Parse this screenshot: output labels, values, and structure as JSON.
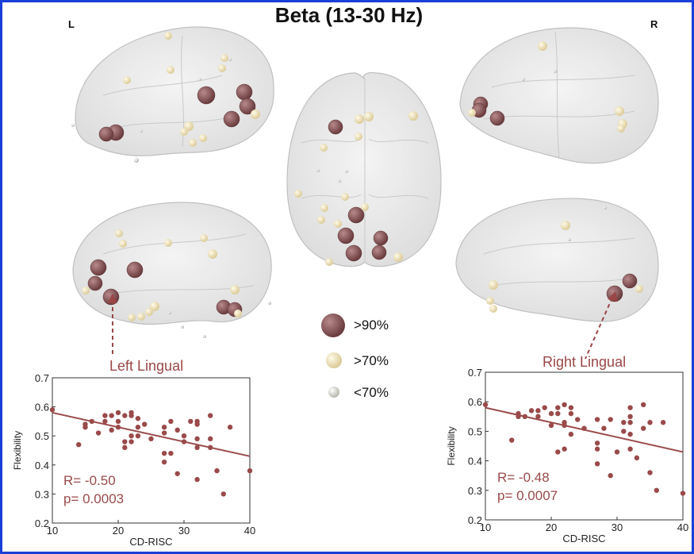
{
  "title": "Beta (13-30 Hz)",
  "side_left": "L",
  "side_right": "R",
  "roi_left": "Left Lingual",
  "roi_right": "Right Lingual",
  "legend": [
    {
      "label": ">90%",
      "color": "#7a4a4c"
    },
    {
      "label": ">70%",
      "color": "#efe3bd"
    },
    {
      "label": "<70%",
      "color": "#e6e6e0"
    }
  ],
  "chart_data": [
    {
      "type": "scatter",
      "xlabel": "CD-RISC",
      "ylabel": "Flexibility",
      "xlim": [
        10,
        40
      ],
      "ylim": [
        0.2,
        0.7
      ],
      "x_ticks": [
        "10",
        "20",
        "30",
        "40"
      ],
      "y_ticks": [
        "0.2",
        "0.3",
        "0.4",
        "0.5",
        "0.6",
        "0.7"
      ],
      "stat_r": "R= -0.50",
      "stat_p": "p= 0.0003",
      "fit": {
        "x": [
          10,
          40
        ],
        "y": [
          0.58,
          0.43
        ]
      },
      "points": [
        [
          10,
          0.59
        ],
        [
          14,
          0.47
        ],
        [
          15,
          0.53
        ],
        [
          15,
          0.54
        ],
        [
          16,
          0.55
        ],
        [
          17,
          0.51
        ],
        [
          18,
          0.57
        ],
        [
          18,
          0.55
        ],
        [
          19,
          0.57
        ],
        [
          19,
          0.52
        ],
        [
          20,
          0.58
        ],
        [
          20,
          0.55
        ],
        [
          20,
          0.53
        ],
        [
          21,
          0.57
        ],
        [
          21,
          0.48
        ],
        [
          21,
          0.46
        ],
        [
          22,
          0.58
        ],
        [
          22,
          0.57
        ],
        [
          22,
          0.5
        ],
        [
          22,
          0.48
        ],
        [
          23,
          0.56
        ],
        [
          23,
          0.53
        ],
        [
          23,
          0.5
        ],
        [
          24,
          0.54
        ],
        [
          25,
          0.49
        ],
        [
          27,
          0.53
        ],
        [
          27,
          0.51
        ],
        [
          27,
          0.44
        ],
        [
          27,
          0.41
        ],
        [
          28,
          0.55
        ],
        [
          28,
          0.44
        ],
        [
          29,
          0.52
        ],
        [
          29,
          0.37
        ],
        [
          30,
          0.5
        ],
        [
          30,
          0.48
        ],
        [
          31,
          0.55
        ],
        [
          32,
          0.55
        ],
        [
          32,
          0.54
        ],
        [
          32,
          0.49
        ],
        [
          32,
          0.46
        ],
        [
          32,
          0.35
        ],
        [
          34,
          0.57
        ],
        [
          34,
          0.49
        ],
        [
          34,
          0.46
        ],
        [
          35,
          0.38
        ],
        [
          36,
          0.3
        ],
        [
          37,
          0.53
        ],
        [
          40,
          0.38
        ]
      ]
    },
    {
      "type": "scatter",
      "xlabel": "CD-RISC",
      "ylabel": "Flexibility",
      "xlim": [
        10,
        40
      ],
      "ylim": [
        0.2,
        0.7
      ],
      "x_ticks": [
        "10",
        "20",
        "30",
        "40"
      ],
      "y_ticks": [
        "0.2",
        "0.3",
        "0.4",
        "0.5",
        "0.6",
        "0.7"
      ],
      "stat_r": "R= -0.48",
      "stat_p": "p= 0.0007",
      "fit": {
        "x": [
          10,
          40
        ],
        "y": [
          0.58,
          0.43
        ]
      },
      "points": [
        [
          10,
          0.59
        ],
        [
          14,
          0.47
        ],
        [
          15,
          0.56
        ],
        [
          15,
          0.55
        ],
        [
          16,
          0.55
        ],
        [
          17,
          0.57
        ],
        [
          18,
          0.57
        ],
        [
          18,
          0.55
        ],
        [
          19,
          0.58
        ],
        [
          20,
          0.56
        ],
        [
          20,
          0.52
        ],
        [
          21,
          0.58
        ],
        [
          21,
          0.56
        ],
        [
          21,
          0.43
        ],
        [
          22,
          0.59
        ],
        [
          22,
          0.53
        ],
        [
          22,
          0.52
        ],
        [
          22,
          0.44
        ],
        [
          23,
          0.58
        ],
        [
          23,
          0.56
        ],
        [
          23,
          0.49
        ],
        [
          24,
          0.54
        ],
        [
          25,
          0.51
        ],
        [
          27,
          0.54
        ],
        [
          27,
          0.46
        ],
        [
          27,
          0.44
        ],
        [
          27,
          0.39
        ],
        [
          28,
          0.51
        ],
        [
          29,
          0.54
        ],
        [
          29,
          0.35
        ],
        [
          30,
          0.43
        ],
        [
          31,
          0.53
        ],
        [
          31,
          0.5
        ],
        [
          32,
          0.58
        ],
        [
          32,
          0.55
        ],
        [
          32,
          0.53
        ],
        [
          32,
          0.49
        ],
        [
          32,
          0.44
        ],
        [
          33,
          0.41
        ],
        [
          34,
          0.59
        ],
        [
          34,
          0.51
        ],
        [
          35,
          0.53
        ],
        [
          35,
          0.36
        ],
        [
          36,
          0.3
        ],
        [
          37,
          0.53
        ],
        [
          40,
          0.29
        ]
      ]
    }
  ]
}
